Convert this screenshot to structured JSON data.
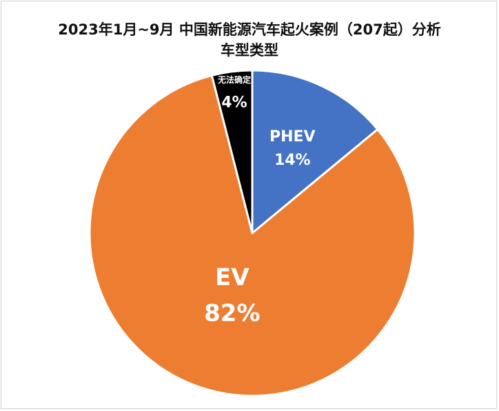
{
  "chart_data": {
    "type": "pie",
    "title_line1": "2023年1月~9月  中国新能源汽车起火案例（207起）分析",
    "title_line2": "车型类型",
    "slices": [
      {
        "label": "PHEV",
        "value": 14,
        "value_label": "14%",
        "color": "#4472C4"
      },
      {
        "label": "EV",
        "value": 82,
        "value_label": "82%",
        "color": "#ED7D31"
      },
      {
        "label": "无法确定",
        "value": 4,
        "value_label": "4%",
        "color": "#000000"
      }
    ],
    "start_angle_deg": 0,
    "direction": "clockwise",
    "border_color": "#ffffff"
  }
}
